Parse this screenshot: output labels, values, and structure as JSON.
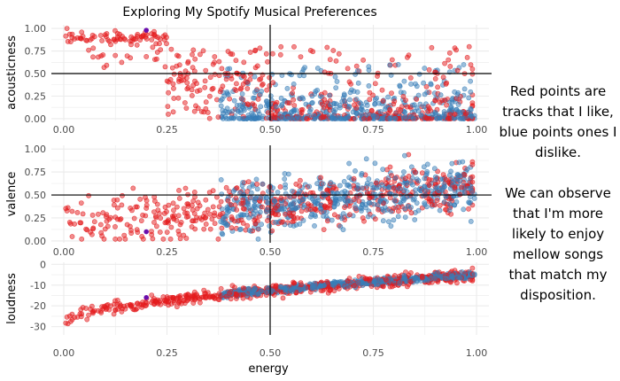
{
  "title": "Exploring My Spotify Musical Preferences",
  "note": {
    "p1": "Red points are tracks that I like, blue points ones I dislike.",
    "p2": "We can observe that I'm more likely to enjoy mellow songs that match my disposition."
  },
  "colors": {
    "liked": "#e41a1c",
    "disliked": "#377eb8",
    "highlight": "#6a0dad",
    "grid": "#ebebeb",
    "ref": "#000000"
  },
  "chart_data": [
    {
      "type": "scatter",
      "title": "Exploring My Spotify Musical Preferences",
      "xlabel": "",
      "ylabel": "acousticness",
      "xlim": [
        -0.03,
        1.03
      ],
      "ylim": [
        -0.02,
        1.04
      ],
      "xticks": [
        "0.00",
        "0.25",
        "0.50",
        "0.75",
        "1.00"
      ],
      "yticks": [
        "0.00",
        "0.25",
        "0.50",
        "0.75",
        "1.00"
      ],
      "reference_lines": {
        "x": 0.5,
        "y": 0.5
      },
      "highlight_point": {
        "x": 0.2,
        "y": 0.98
      },
      "series": [
        {
          "name": "liked",
          "trend": "acousticness high at low energy, sparse high values above 0.5 energy",
          "n": 520
        },
        {
          "name": "disliked",
          "trend": "acousticness near 0 at energy 0.5-1.0",
          "n": 520
        }
      ]
    },
    {
      "type": "scatter",
      "xlabel": "",
      "ylabel": "valence",
      "xlim": [
        -0.03,
        1.03
      ],
      "ylim": [
        -0.02,
        1.04
      ],
      "xticks": [
        "0.00",
        "0.25",
        "0.50",
        "0.75",
        "1.00"
      ],
      "yticks": [
        "0.00",
        "0.25",
        "0.50",
        "0.75",
        "1.00"
      ],
      "reference_lines": {
        "x": 0.5,
        "y": 0.5
      },
      "highlight_point": {
        "x": 0.2,
        "y": 0.1
      },
      "series": [
        {
          "name": "liked",
          "trend": "valence spread 0-1, rising with energy",
          "n": 520
        },
        {
          "name": "disliked",
          "trend": "valence spread 0-1 at energy 0.4-1.0",
          "n": 520
        }
      ]
    },
    {
      "type": "scatter",
      "xlabel": "energy",
      "ylabel": "loudness",
      "xlim": [
        -0.03,
        1.03
      ],
      "ylim": [
        -34,
        1
      ],
      "xticks": [
        "0.00",
        "0.25",
        "0.50",
        "0.75",
        "1.00"
      ],
      "yticks": [
        "0",
        "-10",
        "-20",
        "-30"
      ],
      "reference_lines": {
        "x": 0.5
      },
      "highlight_point": {
        "x": 0.2,
        "y": -16
      },
      "series": [
        {
          "name": "liked",
          "trend": "loudness rises from about -28 dB at energy 0 to about -4 dB at energy 1",
          "n": 520
        },
        {
          "name": "disliked",
          "trend": "loudness about -10 to -3 dB at energy 0.4-1.0",
          "n": 520
        }
      ]
    }
  ]
}
